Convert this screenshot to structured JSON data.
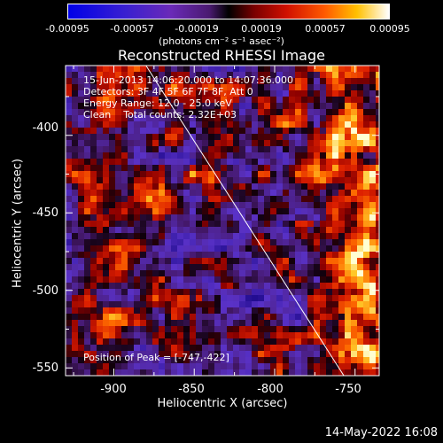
{
  "colorbar": {
    "ticks": [
      "-0.00095",
      "-0.00057",
      "-0.00019",
      "0.00019",
      "0.00057",
      "0.00095"
    ],
    "units": "(photons cm⁻² s⁻¹ asec⁻²)",
    "range": [
      -0.00095,
      0.00095
    ]
  },
  "chart_data": {
    "type": "heatmap",
    "title": "Reconstructed RHESSI Image",
    "xlabel": "Heliocentric X (arcsec)",
    "ylabel": "Heliocentric Y (arcsec)",
    "xlim": [
      -930,
      -735
    ],
    "ylim": [
      -555,
      -355
    ],
    "x_ticks": [
      "-900",
      "-850",
      "-800",
      "-750"
    ],
    "y_ticks": [
      "-400",
      "-450",
      "-500",
      "-550"
    ],
    "x_tick_values": [
      -900,
      -850,
      -800,
      -750
    ],
    "y_tick_values": [
      -400,
      -450,
      -500,
      -550
    ],
    "limb_line": {
      "x": [
        -880,
        -757
      ],
      "y": [
        -355,
        -555
      ]
    },
    "annotations": {
      "time": "15-Jun-2013 14:06:20.000 to 14:07:36.000",
      "detectors": "Detectors: 3F 4F 5F 6F 7F 8F, Att 0",
      "energy": "Energy Range: 12.0 - 25.0 keV",
      "clean": "Clean    Total counts: 2.32E+03",
      "peak": "Position of Peak = [-747,-422]"
    },
    "peak_position": [
      -747,
      -422
    ]
  },
  "footer": {
    "date": "14-May-2022 16:08"
  }
}
